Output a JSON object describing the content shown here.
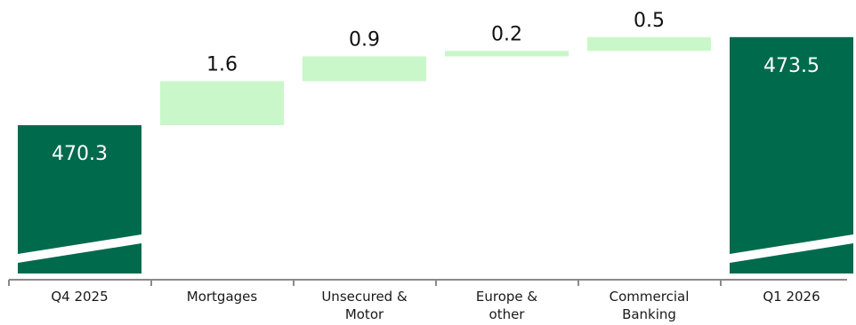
{
  "chart_data": {
    "type": "waterfall",
    "categories": [
      [
        "Q4 2025"
      ],
      [
        "Mortgages"
      ],
      [
        "Unsecured &",
        "Motor"
      ],
      [
        "Europe &",
        "other"
      ],
      [
        "Commercial",
        "Banking"
      ],
      [
        "Q1 2026"
      ]
    ],
    "values": [
      470.3,
      1.6,
      0.9,
      0.2,
      0.5,
      473.5
    ],
    "value_labels": [
      "470.3",
      "1.6",
      "0.9",
      "0.2",
      "0.5",
      "473.5"
    ],
    "kinds": [
      "total",
      "delta",
      "delta",
      "delta",
      "delta",
      "total"
    ],
    "axis_break": true,
    "colors": {
      "total": "#006a4d",
      "delta": "#c9f7c9",
      "axis": "#8a8a8a",
      "label_dark": "#111111",
      "label_light": "#ffffff"
    }
  }
}
